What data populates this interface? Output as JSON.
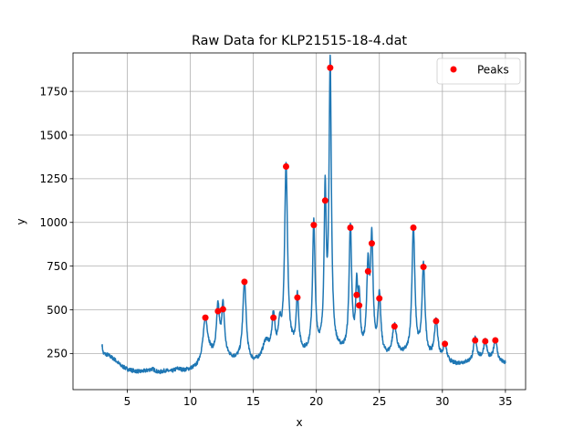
{
  "chart_data": {
    "type": "line",
    "title": "Raw Data for KLP21515-18-4.dat",
    "xlabel": "x",
    "ylabel": "y",
    "xlim": [
      0.7,
      36.6
    ],
    "ylim": [
      43,
      1970
    ],
    "x_ticks": [
      5,
      10,
      15,
      20,
      25,
      30,
      35
    ],
    "x_tick_labels": [
      "5",
      "10",
      "15",
      "20",
      "25",
      "30",
      "35"
    ],
    "y_ticks": [
      250,
      500,
      750,
      1000,
      1250,
      1500,
      1750
    ],
    "y_tick_labels": [
      "250",
      "500",
      "750",
      "1000",
      "1250",
      "1500",
      "1750"
    ],
    "grid": true,
    "legend": {
      "position": "top-right",
      "entries": [
        "Peaks"
      ]
    },
    "colors": {
      "line": "#1f77b4",
      "peaks": "#ff0000",
      "grid": "#b0b0b0"
    },
    "baseline": [
      [
        3.0,
        300
      ],
      [
        3.1,
        250
      ],
      [
        3.5,
        240
      ],
      [
        4.0,
        215
      ],
      [
        4.5,
        180
      ],
      [
        5.0,
        160
      ],
      [
        5.5,
        150
      ],
      [
        6.0,
        145
      ],
      [
        6.5,
        150
      ],
      [
        7.0,
        160
      ],
      [
        7.5,
        140
      ],
      [
        8.0,
        150
      ],
      [
        8.5,
        145
      ],
      [
        9.0,
        160
      ],
      [
        9.5,
        150
      ],
      [
        10.0,
        155
      ],
      [
        10.5,
        165
      ],
      [
        11.0,
        200
      ],
      [
        11.5,
        230
      ],
      [
        12.0,
        220
      ],
      [
        13.0,
        215
      ],
      [
        13.5,
        205
      ],
      [
        14.0,
        200
      ],
      [
        15.0,
        185
      ],
      [
        16.0,
        205
      ],
      [
        17.0,
        230
      ],
      [
        18.0,
        260
      ],
      [
        19.0,
        240
      ],
      [
        20.0,
        250
      ],
      [
        21.0,
        260
      ],
      [
        22.0,
        250
      ],
      [
        23.0,
        240
      ],
      [
        24.0,
        240
      ],
      [
        25.0,
        220
      ],
      [
        26.0,
        215
      ],
      [
        27.0,
        230
      ],
      [
        28.0,
        220
      ],
      [
        29.0,
        210
      ],
      [
        30.0,
        200
      ],
      [
        31.0,
        185
      ],
      [
        32.0,
        195
      ],
      [
        33.0,
        210
      ],
      [
        34.0,
        205
      ],
      [
        35.0,
        190
      ]
    ],
    "peak_shapes": [
      {
        "x": 11.2,
        "h": 230,
        "w": 0.22
      },
      {
        "x": 12.2,
        "h": 280,
        "w": 0.14
      },
      {
        "x": 12.6,
        "h": 290,
        "w": 0.14
      },
      {
        "x": 14.3,
        "h": 460,
        "w": 0.16
      },
      {
        "x": 16.0,
        "h": 100,
        "w": 0.3
      },
      {
        "x": 16.6,
        "h": 220,
        "w": 0.15
      },
      {
        "x": 17.1,
        "h": 150,
        "w": 0.12
      },
      {
        "x": 17.6,
        "h": 1060,
        "w": 0.14
      },
      {
        "x": 18.5,
        "h": 310,
        "w": 0.12
      },
      {
        "x": 19.8,
        "h": 735,
        "w": 0.12
      },
      {
        "x": 20.7,
        "h": 865,
        "w": 0.1
      },
      {
        "x": 21.1,
        "h": 1625,
        "w": 0.11
      },
      {
        "x": 22.7,
        "h": 720,
        "w": 0.12
      },
      {
        "x": 23.2,
        "h": 340,
        "w": 0.1
      },
      {
        "x": 23.4,
        "h": 280,
        "w": 0.1
      },
      {
        "x": 24.1,
        "h": 470,
        "w": 0.12
      },
      {
        "x": 24.4,
        "h": 630,
        "w": 0.12
      },
      {
        "x": 25.0,
        "h": 340,
        "w": 0.14
      },
      {
        "x": 26.2,
        "h": 180,
        "w": 0.2
      },
      {
        "x": 27.7,
        "h": 735,
        "w": 0.14
      },
      {
        "x": 28.5,
        "h": 520,
        "w": 0.14
      },
      {
        "x": 29.5,
        "h": 220,
        "w": 0.16
      },
      {
        "x": 30.2,
        "h": 100,
        "w": 0.15
      },
      {
        "x": 32.6,
        "h": 130,
        "w": 0.15
      },
      {
        "x": 33.4,
        "h": 110,
        "w": 0.15
      },
      {
        "x": 34.2,
        "h": 130,
        "w": 0.15
      }
    ],
    "peaks": [
      {
        "x": 11.2,
        "y": 455
      },
      {
        "x": 12.2,
        "y": 492
      },
      {
        "x": 12.6,
        "y": 503
      },
      {
        "x": 14.3,
        "y": 660
      },
      {
        "x": 16.6,
        "y": 455
      },
      {
        "x": 17.6,
        "y": 1320
      },
      {
        "x": 18.5,
        "y": 570
      },
      {
        "x": 19.8,
        "y": 985
      },
      {
        "x": 20.7,
        "y": 1125
      },
      {
        "x": 21.1,
        "y": 1885
      },
      {
        "x": 22.7,
        "y": 970
      },
      {
        "x": 23.2,
        "y": 585
      },
      {
        "x": 23.4,
        "y": 525
      },
      {
        "x": 24.1,
        "y": 720
      },
      {
        "x": 24.4,
        "y": 880
      },
      {
        "x": 25.0,
        "y": 565
      },
      {
        "x": 26.2,
        "y": 405
      },
      {
        "x": 27.7,
        "y": 970
      },
      {
        "x": 28.5,
        "y": 745
      },
      {
        "x": 29.5,
        "y": 435
      },
      {
        "x": 30.2,
        "y": 305
      },
      {
        "x": 32.6,
        "y": 325
      },
      {
        "x": 33.4,
        "y": 320
      },
      {
        "x": 34.2,
        "y": 325
      }
    ]
  }
}
